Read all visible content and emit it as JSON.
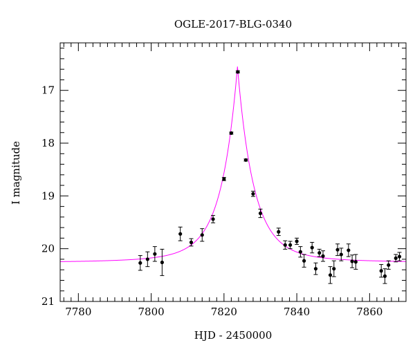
{
  "chart_data": {
    "type": "scatter",
    "title": "OGLE-2017-BLG-0340",
    "xlabel": "HJD - 2450000",
    "ylabel": "I magnitude",
    "xlim": [
      7775,
      7870
    ],
    "ylim": [
      21,
      16.1
    ],
    "y_inverted": true,
    "grid": false,
    "x_ticks": [
      7780,
      7800,
      7820,
      7840,
      7860
    ],
    "y_ticks": [
      17,
      18,
      19,
      20,
      21
    ],
    "x_minor_step": 2,
    "y_minor_step": 0.2,
    "point_color": "#000000",
    "model_color": "#ff00ff",
    "model": {
      "t0": 7823.7,
      "base": 20.27,
      "A": 3.4,
      "tau": 4.2
    },
    "points": [
      {
        "x": 7797.0,
        "y": 20.27,
        "err": 0.14
      },
      {
        "x": 7799.0,
        "y": 20.2,
        "err": 0.14
      },
      {
        "x": 7801.0,
        "y": 20.1,
        "err": 0.14
      },
      {
        "x": 7803.0,
        "y": 20.26,
        "err": 0.25
      },
      {
        "x": 7808.0,
        "y": 19.72,
        "err": 0.13
      },
      {
        "x": 7811.0,
        "y": 19.88,
        "err": 0.07
      },
      {
        "x": 7814.0,
        "y": 19.74,
        "err": 0.12
      },
      {
        "x": 7817.0,
        "y": 19.44,
        "err": 0.07
      },
      {
        "x": 7820.0,
        "y": 18.68,
        "err": 0.03
      },
      {
        "x": 7822.0,
        "y": 17.81,
        "err": 0.02
      },
      {
        "x": 7823.8,
        "y": 16.65,
        "err": 0.02
      },
      {
        "x": 7826.0,
        "y": 18.32,
        "err": 0.02
      },
      {
        "x": 7828.0,
        "y": 18.96,
        "err": 0.05
      },
      {
        "x": 7830.0,
        "y": 19.33,
        "err": 0.08
      },
      {
        "x": 7835.0,
        "y": 19.68,
        "err": 0.07
      },
      {
        "x": 7836.8,
        "y": 19.93,
        "err": 0.08
      },
      {
        "x": 7838.2,
        "y": 19.93,
        "err": 0.07
      },
      {
        "x": 7840.0,
        "y": 19.86,
        "err": 0.06
      },
      {
        "x": 7841.0,
        "y": 20.06,
        "err": 0.1
      },
      {
        "x": 7842.0,
        "y": 20.23,
        "err": 0.12
      },
      {
        "x": 7844.2,
        "y": 19.98,
        "err": 0.1
      },
      {
        "x": 7845.2,
        "y": 20.38,
        "err": 0.11
      },
      {
        "x": 7846.2,
        "y": 20.08,
        "err": 0.07
      },
      {
        "x": 7847.2,
        "y": 20.14,
        "err": 0.1
      },
      {
        "x": 7849.2,
        "y": 20.5,
        "err": 0.16
      },
      {
        "x": 7850.2,
        "y": 20.38,
        "err": 0.15
      },
      {
        "x": 7851.2,
        "y": 20.02,
        "err": 0.11
      },
      {
        "x": 7852.2,
        "y": 20.11,
        "err": 0.12
      },
      {
        "x": 7854.2,
        "y": 20.03,
        "err": 0.12
      },
      {
        "x": 7855.2,
        "y": 20.24,
        "err": 0.12
      },
      {
        "x": 7856.2,
        "y": 20.25,
        "err": 0.14
      },
      {
        "x": 7863.2,
        "y": 20.42,
        "err": 0.12
      },
      {
        "x": 7864.2,
        "y": 20.52,
        "err": 0.14
      },
      {
        "x": 7865.2,
        "y": 20.31,
        "err": 0.08
      },
      {
        "x": 7867.2,
        "y": 20.18,
        "err": 0.07
      },
      {
        "x": 7868.2,
        "y": 20.15,
        "err": 0.08
      }
    ]
  }
}
